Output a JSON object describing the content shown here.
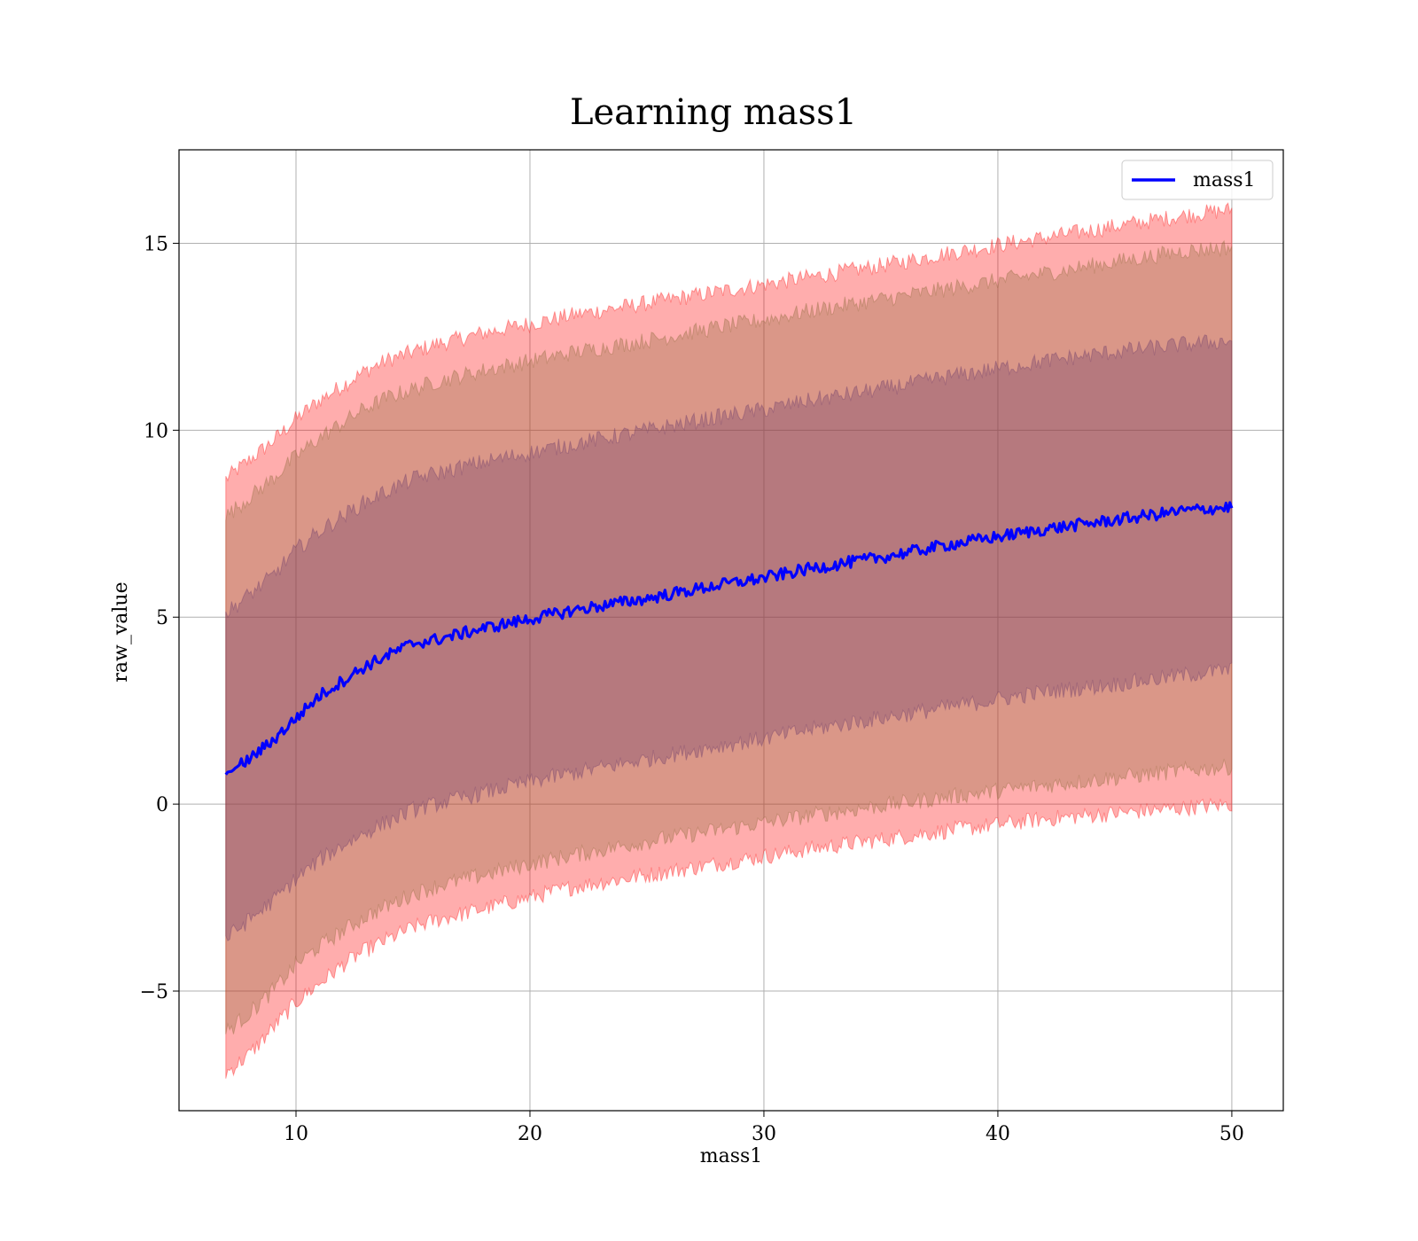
{
  "chart_data": {
    "type": "area",
    "title": "Learning mass1",
    "xlabel": "mass1",
    "ylabel": "raw_value",
    "xlim": [
      5,
      52.2
    ],
    "ylim": [
      -8.2,
      17.5
    ],
    "xticks": [
      10,
      20,
      30,
      40,
      50
    ],
    "yticks": [
      -5,
      0,
      5,
      10,
      15
    ],
    "ytick_labels": [
      "−5",
      "0",
      "5",
      "10",
      "15"
    ],
    "grid": true,
    "legend": {
      "position": "top-right",
      "entries": [
        "mass1"
      ]
    },
    "x": [
      7,
      8,
      9,
      10,
      11,
      12,
      13,
      14,
      15,
      16,
      18,
      20,
      22,
      25,
      28,
      30,
      32,
      35,
      38,
      40,
      42,
      45,
      48,
      50
    ],
    "series": [
      {
        "name": "mass1",
        "kind": "line",
        "color": "#0000ff",
        "values": [
          0.8,
          1.2,
          1.7,
          2.3,
          2.9,
          3.3,
          3.7,
          4.0,
          4.3,
          4.4,
          4.7,
          4.95,
          5.2,
          5.5,
          5.85,
          6.05,
          6.3,
          6.6,
          6.95,
          7.15,
          7.35,
          7.6,
          7.85,
          7.95
        ]
      },
      {
        "kind": "band",
        "color": "#ff0000",
        "lower": [
          -7.2,
          -6.7,
          -6.0,
          -5.3,
          -4.8,
          -4.3,
          -3.9,
          -3.6,
          -3.3,
          -3.1,
          -2.8,
          -2.5,
          -2.2,
          -1.9,
          -1.6,
          -1.4,
          -1.2,
          -0.95,
          -0.7,
          -0.55,
          -0.4,
          -0.25,
          -0.1,
          0.0
        ],
        "upper": [
          8.7,
          9.2,
          9.7,
          10.3,
          10.8,
          11.2,
          11.6,
          11.9,
          12.1,
          12.3,
          12.6,
          12.85,
          13.1,
          13.4,
          13.7,
          13.9,
          14.1,
          14.4,
          14.75,
          14.95,
          15.15,
          15.45,
          15.75,
          15.9
        ]
      },
      {
        "kind": "band",
        "color": "#8b6a3a",
        "lower": [
          -6.1,
          -5.6,
          -5.0,
          -4.3,
          -3.8,
          -3.4,
          -3.0,
          -2.7,
          -2.4,
          -2.2,
          -1.9,
          -1.6,
          -1.35,
          -1.0,
          -0.7,
          -0.5,
          -0.3,
          -0.05,
          0.2,
          0.35,
          0.5,
          0.7,
          0.9,
          1.0
        ],
        "upper": [
          7.7,
          8.2,
          8.7,
          9.3,
          9.8,
          10.2,
          10.6,
          10.9,
          11.1,
          11.3,
          11.6,
          11.85,
          12.1,
          12.4,
          12.75,
          12.95,
          13.2,
          13.5,
          13.8,
          14.0,
          14.2,
          14.5,
          14.8,
          14.9
        ]
      },
      {
        "kind": "band",
        "color": "#6a3a6a",
        "lower": [
          -3.6,
          -3.1,
          -2.6,
          -2.0,
          -1.5,
          -1.1,
          -0.75,
          -0.45,
          -0.15,
          0.0,
          0.3,
          0.6,
          0.85,
          1.2,
          1.55,
          1.75,
          2.0,
          2.3,
          2.6,
          2.8,
          3.0,
          3.2,
          3.45,
          3.6
        ],
        "upper": [
          5.1,
          5.6,
          6.1,
          6.8,
          7.3,
          7.7,
          8.1,
          8.4,
          8.7,
          8.85,
          9.15,
          9.4,
          9.65,
          10.0,
          10.35,
          10.55,
          10.8,
          11.1,
          11.45,
          11.65,
          11.85,
          12.1,
          12.3,
          12.4
        ]
      }
    ]
  }
}
